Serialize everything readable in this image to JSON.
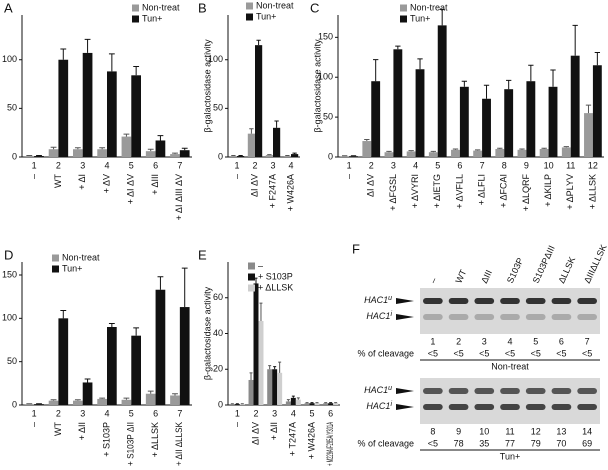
{
  "chart_data": [
    {
      "type": "bar",
      "letter": "A",
      "lanes": [
        1,
        2,
        3,
        4,
        5,
        6,
        7
      ],
      "categories": [
        "–",
        "WT",
        "+ ΔI",
        "+ ΔV",
        "+ ΔI ΔV",
        "+ ΔIII",
        "+ ΔI ΔIII ΔV"
      ],
      "series": [
        {
          "name": "Non-treat",
          "color": "#9a9a9a",
          "values": [
            1,
            8,
            8,
            8,
            21,
            6,
            3
          ],
          "errors": [
            0.5,
            2,
            1.5,
            1.5,
            2.5,
            2,
            1
          ]
        },
        {
          "name": "Tun+",
          "color": "#111111",
          "values": [
            1,
            100,
            107,
            88,
            84,
            17,
            7
          ],
          "errors": [
            0.5,
            11,
            14,
            18,
            9,
            5,
            2
          ]
        }
      ],
      "ylim": [
        0,
        146
      ],
      "yticks": [
        0,
        50,
        100
      ]
    },
    {
      "type": "bar",
      "letter": "B",
      "ylabel": "β-galactosidase activity",
      "lanes": [
        1,
        2,
        3,
        4
      ],
      "categories": [
        "–",
        "ΔI ΔV",
        "+ F247A",
        "+ W426A"
      ],
      "series": [
        {
          "name": "Non-treat",
          "color": "#9a9a9a",
          "values": [
            1,
            24,
            2,
            1
          ],
          "errors": [
            0.5,
            5,
            0.5,
            0.5
          ]
        },
        {
          "name": "Tun+",
          "color": "#111111",
          "values": [
            1,
            115,
            30,
            3
          ],
          "errors": [
            0.5,
            5,
            7,
            1
          ]
        }
      ],
      "ylim": [
        0,
        146
      ],
      "yticks": [
        0,
        50,
        100
      ]
    },
    {
      "type": "bar",
      "letter": "C",
      "ylabel": "β-galactosidase activity",
      "lanes": [
        1,
        2,
        3,
        4,
        5,
        6,
        7,
        8,
        9,
        10,
        11,
        12
      ],
      "categories": [
        "–",
        "ΔI ΔV",
        "+ ΔFGSL",
        "+ ΔVYRI",
        "+ ΔIETG",
        "+ ΔVFLL",
        "+ ΔLFLI",
        "+ ΔFCAI",
        "+ ΔLQRF",
        "+ ΔKILP",
        "+ ΔPLYV",
        "+ ΔLLSK"
      ],
      "series": [
        {
          "name": "Non-treat",
          "color": "#9a9a9a",
          "values": [
            1,
            20,
            6,
            7,
            6,
            9,
            8,
            10,
            9,
            10,
            12,
            55
          ],
          "errors": [
            0.5,
            2,
            1,
            1,
            1,
            1,
            1,
            1,
            1,
            1,
            1,
            10
          ]
        },
        {
          "name": "Tun+",
          "color": "#111111",
          "values": [
            1,
            95,
            135,
            110,
            165,
            88,
            73,
            85,
            95,
            88,
            127,
            115
          ],
          "errors": [
            0.5,
            27,
            4,
            13,
            20,
            7,
            17,
            11,
            20,
            21,
            38,
            16
          ]
        }
      ],
      "ylim": [
        0,
        178
      ],
      "yticks": [
        0,
        50,
        100,
        150
      ]
    },
    {
      "type": "bar",
      "letter": "D",
      "lanes": [
        1,
        2,
        3,
        4,
        5,
        6,
        7
      ],
      "categories": [
        "–",
        "WT",
        "+ ΔII",
        "+ S103P",
        "+ S103P ΔII",
        "+ ΔLLSK",
        "+ ΔII ΔLLSK"
      ],
      "series": [
        {
          "name": "Non-treat",
          "color": "#9a9a9a",
          "values": [
            1,
            5,
            5,
            7,
            6,
            13,
            11
          ],
          "errors": [
            0.5,
            1,
            1,
            1,
            2,
            3,
            2
          ]
        },
        {
          "name": "Tun+",
          "color": "#111111",
          "values": [
            1,
            100,
            26,
            90,
            80,
            133,
            113
          ],
          "errors": [
            0.5,
            9,
            4,
            4,
            9,
            15,
            45
          ]
        }
      ],
      "ylim": [
        0,
        165
      ],
      "yticks": [
        0,
        50,
        100,
        150
      ]
    },
    {
      "type": "bar",
      "letter": "E",
      "ylabel": "β-galactosidase activity",
      "lanes": [
        1,
        2,
        3,
        4,
        5,
        6
      ],
      "categories": [
        "–",
        "ΔI ΔV",
        "+ ΔII",
        "+ T247A",
        "+ W426A",
        "+ M229A/F285A/Y301A"
      ],
      "series": [
        {
          "name": "–",
          "color": "#8a8a8a",
          "values": [
            0.5,
            14,
            20,
            2,
            1,
            1
          ],
          "errors": [
            0.2,
            4,
            2,
            1,
            0.3,
            0.3
          ]
        },
        {
          "name": "+ S103P",
          "color": "#111111",
          "values": [
            0.5,
            68,
            20,
            4,
            1,
            1
          ],
          "errors": [
            0.2,
            3,
            1.5,
            1,
            0.3,
            0.3
          ]
        },
        {
          "name": "+ ΔLLSK",
          "color": "#cfcfcf",
          "values": [
            0.5,
            47,
            18,
            3,
            1,
            1
          ],
          "errors": [
            0.2,
            10,
            6,
            1,
            0.3,
            0.3
          ]
        }
      ],
      "ylim": [
        0,
        80
      ],
      "yticks": [
        0,
        20,
        40,
        60
      ]
    }
  ],
  "gel": {
    "letter": "F",
    "lane_labels": [
      "–",
      "WT",
      "ΔIII",
      "S103P",
      "S103PΔIII",
      "ΔLLSK",
      "ΔIIIΔLLSK"
    ],
    "bands": [
      {
        "text": "HAC1",
        "sup": "u"
      },
      {
        "text": "HAC1",
        "sup": "i"
      }
    ],
    "cleavage_label": "% of cleavage",
    "blots": [
      {
        "lanes": [
          1,
          2,
          3,
          4,
          5,
          6,
          7
        ],
        "cleavage": [
          "<5",
          "<5",
          "<5",
          "<5",
          "<5",
          "<5",
          "<5"
        ],
        "condition": "Non-treat"
      },
      {
        "lanes": [
          8,
          9,
          10,
          11,
          12,
          13,
          14
        ],
        "cleavage": [
          "<5",
          78,
          35,
          77,
          79,
          70,
          69
        ],
        "condition": "Tun+"
      }
    ]
  }
}
